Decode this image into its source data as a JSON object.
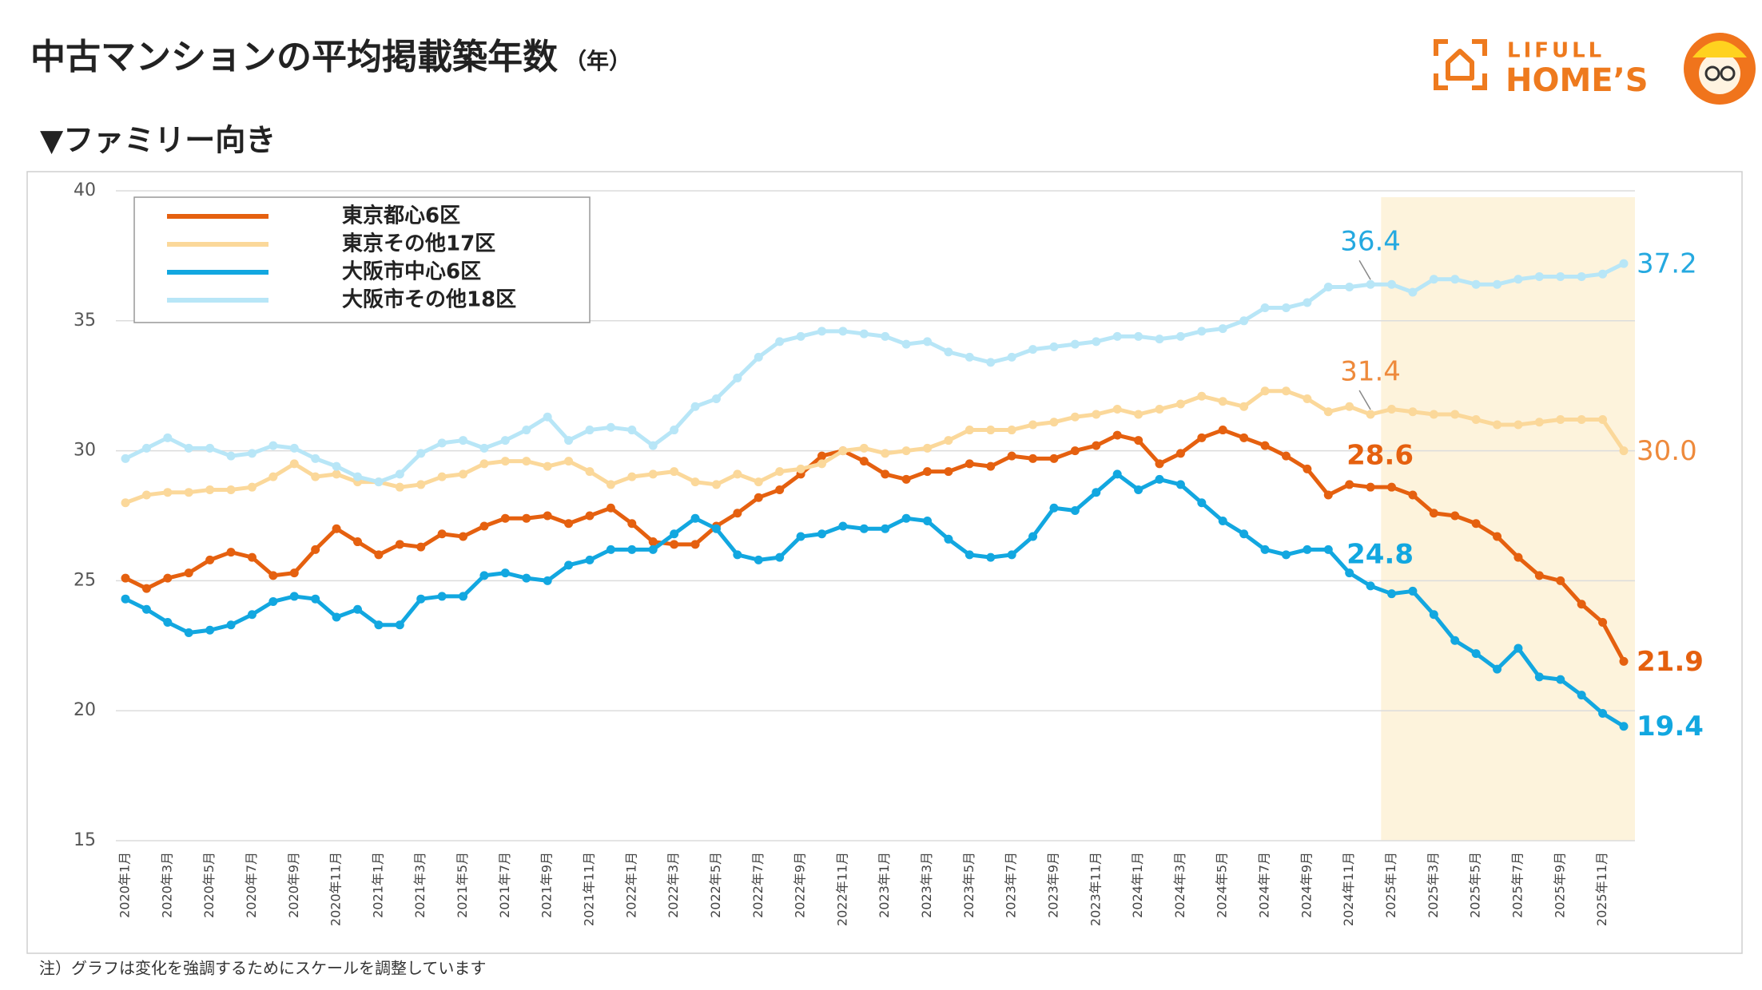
{
  "chart_data": {
    "type": "line",
    "title": "中古マンションの平均掲載築年数",
    "subtitle": "（年）",
    "section": "▼ファミリー向き",
    "note": "注）グラフは変化を強調するためにスケールを調整しています",
    "brand": [
      "LIFULL",
      "HOME’S"
    ],
    "categories": [
      "2020年1月",
      null,
      "2020年3月",
      null,
      "2020年5月",
      null,
      "2020年7月",
      null,
      "2020年9月",
      null,
      "2020年11月",
      null,
      "2021年1月",
      null,
      "2021年3月",
      null,
      "2021年5月",
      null,
      "2021年7月",
      null,
      "2021年9月",
      null,
      "2021年11月",
      null,
      "2022年1月",
      null,
      "2022年3月",
      null,
      "2022年5月",
      null,
      "2022年7月",
      null,
      "2022年9月",
      null,
      "2022年11月",
      null,
      "2023年1月",
      null,
      "2023年3月",
      null,
      "2023年5月",
      null,
      "2023年7月",
      null,
      "2023年9月",
      null,
      "2023年11月",
      null,
      "2024年1月",
      null,
      "2024年3月",
      null,
      "2024年5月",
      null,
      "2024年7月",
      null,
      "2024年9月",
      null,
      "2024年11月",
      null,
      "2025年1月",
      null,
      "2025年3月",
      null,
      "2025年5月",
      null,
      "2025年7月",
      null,
      "2025年9月",
      null,
      "2025年11月",
      null
    ],
    "highlight_from": "2025年1月",
    "series": [
      {
        "name": "東京都心6区",
        "color": "#e5600f",
        "label_color": "#e5600f",
        "label_bold": true,
        "values": [
          25.1,
          24.7,
          25.1,
          25.3,
          25.8,
          26.1,
          25.9,
          25.2,
          25.3,
          26.2,
          27.0,
          26.5,
          26.0,
          26.4,
          26.3,
          26.8,
          26.7,
          27.1,
          27.4,
          27.4,
          27.5,
          27.2,
          27.5,
          27.8,
          27.2,
          26.5,
          26.4,
          26.4,
          27.1,
          27.6,
          28.2,
          28.5,
          29.1,
          29.8,
          30.0,
          29.6,
          29.1,
          28.9,
          29.2,
          29.2,
          29.5,
          29.4,
          29.8,
          29.7,
          29.7,
          30.0,
          30.2,
          30.6,
          30.4,
          29.5,
          29.9,
          30.5,
          30.8,
          30.5,
          30.2,
          29.8,
          29.3,
          28.3,
          28.7,
          28.6,
          28.6,
          28.3,
          27.6,
          27.5,
          27.2,
          26.7,
          25.9,
          25.2,
          25.0,
          24.1,
          23.4,
          21.9
        ],
        "value_labels": [
          null,
          null,
          null,
          null,
          null,
          null,
          null,
          null,
          null,
          null,
          null,
          null,
          null,
          null,
          null,
          null,
          null,
          null,
          null,
          null,
          null,
          null,
          null,
          null,
          null,
          null,
          null,
          null,
          null,
          null,
          null,
          null,
          null,
          null,
          null,
          null,
          null,
          null,
          null,
          null,
          null,
          null,
          null,
          null,
          null,
          null,
          null,
          null,
          null,
          null,
          null,
          null,
          null,
          null,
          null,
          null,
          null,
          null,
          null,
          "28.6",
          null,
          null,
          null,
          null,
          null,
          null,
          null,
          null,
          null,
          null,
          null,
          "21.9"
        ]
      },
      {
        "name": "東京その他17区",
        "color": "#fbd89a",
        "label_color": "#ee8a3c",
        "label_bold": false,
        "values": [
          28.0,
          28.3,
          28.4,
          28.4,
          28.5,
          28.5,
          28.6,
          29.0,
          29.5,
          29.0,
          29.1,
          28.8,
          28.8,
          28.6,
          28.7,
          29.0,
          29.1,
          29.5,
          29.6,
          29.6,
          29.4,
          29.6,
          29.2,
          28.7,
          29.0,
          29.1,
          29.2,
          28.8,
          28.7,
          29.1,
          28.8,
          29.2,
          29.3,
          29.5,
          30.0,
          30.1,
          29.9,
          30.0,
          30.1,
          30.4,
          30.8,
          30.8,
          30.8,
          31.0,
          31.1,
          31.3,
          31.4,
          31.6,
          31.4,
          31.6,
          31.8,
          32.1,
          31.9,
          31.7,
          32.3,
          32.3,
          32.0,
          31.5,
          31.7,
          31.4,
          31.6,
          31.5,
          31.4,
          31.4,
          31.2,
          31.0,
          31.0,
          31.1,
          31.2,
          31.2,
          31.2,
          30.0
        ],
        "value_labels": [
          null,
          null,
          null,
          null,
          null,
          null,
          null,
          null,
          null,
          null,
          null,
          null,
          null,
          null,
          null,
          null,
          null,
          null,
          null,
          null,
          null,
          null,
          null,
          null,
          null,
          null,
          null,
          null,
          null,
          null,
          null,
          null,
          null,
          null,
          null,
          null,
          null,
          null,
          null,
          null,
          null,
          null,
          null,
          null,
          null,
          null,
          null,
          null,
          null,
          null,
          null,
          null,
          null,
          null,
          null,
          null,
          null,
          null,
          null,
          "31.4",
          null,
          null,
          null,
          null,
          null,
          null,
          null,
          null,
          null,
          null,
          null,
          "30.0"
        ]
      },
      {
        "name": "大阪市中心6区",
        "color": "#12a7e0",
        "label_color": "#12a7e0",
        "label_bold": true,
        "values": [
          24.3,
          23.9,
          23.4,
          23.0,
          23.1,
          23.3,
          23.7,
          24.2,
          24.4,
          24.3,
          23.6,
          23.9,
          23.3,
          23.3,
          24.3,
          24.4,
          24.4,
          25.2,
          25.3,
          25.1,
          25.0,
          25.6,
          25.8,
          26.2,
          26.2,
          26.2,
          26.8,
          27.4,
          27.0,
          26.0,
          25.8,
          25.9,
          26.7,
          26.8,
          27.1,
          27.0,
          27.0,
          27.4,
          27.3,
          26.6,
          26.0,
          25.9,
          26.0,
          26.7,
          27.8,
          27.7,
          28.4,
          29.1,
          28.5,
          28.9,
          28.7,
          28.0,
          27.3,
          26.8,
          26.2,
          26.0,
          26.2,
          26.2,
          25.3,
          24.8,
          24.5,
          24.6,
          23.7,
          22.7,
          22.2,
          21.6,
          22.4,
          21.3,
          21.2,
          20.6,
          19.9,
          19.4
        ],
        "value_labels": [
          null,
          null,
          null,
          null,
          null,
          null,
          null,
          null,
          null,
          null,
          null,
          null,
          null,
          null,
          null,
          null,
          null,
          null,
          null,
          null,
          null,
          null,
          null,
          null,
          null,
          null,
          null,
          null,
          null,
          null,
          null,
          null,
          null,
          null,
          null,
          null,
          null,
          null,
          null,
          null,
          null,
          null,
          null,
          null,
          null,
          null,
          null,
          null,
          null,
          null,
          null,
          null,
          null,
          null,
          null,
          null,
          null,
          null,
          null,
          "24.8",
          null,
          null,
          null,
          null,
          null,
          null,
          null,
          null,
          null,
          null,
          null,
          "19.4"
        ]
      },
      {
        "name": "大阪市その他18区",
        "color": "#b8e6f7",
        "label_color": "#25a9e0",
        "label_bold": false,
        "values": [
          29.7,
          30.1,
          30.5,
          30.1,
          30.1,
          29.8,
          29.9,
          30.2,
          30.1,
          29.7,
          29.4,
          29.0,
          28.8,
          29.1,
          29.9,
          30.3,
          30.4,
          30.1,
          30.4,
          30.8,
          31.3,
          30.4,
          30.8,
          30.9,
          30.8,
          30.2,
          30.8,
          31.7,
          32.0,
          32.8,
          33.6,
          34.2,
          34.4,
          34.6,
          34.6,
          34.5,
          34.4,
          34.1,
          34.2,
          33.8,
          33.6,
          33.4,
          33.6,
          33.9,
          34.0,
          34.1,
          34.2,
          34.4,
          34.4,
          34.3,
          34.4,
          34.6,
          34.7,
          35.0,
          35.5,
          35.5,
          35.7,
          36.3,
          36.3,
          36.4,
          36.4,
          36.1,
          36.6,
          36.6,
          36.4,
          36.4,
          36.6,
          36.7,
          36.7,
          36.7,
          36.8,
          37.2
        ],
        "value_labels": [
          null,
          null,
          null,
          null,
          null,
          null,
          null,
          null,
          null,
          null,
          null,
          null,
          null,
          null,
          null,
          null,
          null,
          null,
          null,
          null,
          null,
          null,
          null,
          null,
          null,
          null,
          null,
          null,
          null,
          null,
          null,
          null,
          null,
          null,
          null,
          null,
          null,
          null,
          null,
          null,
          null,
          null,
          null,
          null,
          null,
          null,
          null,
          null,
          null,
          null,
          null,
          null,
          null,
          null,
          null,
          null,
          null,
          null,
          null,
          "36.4",
          null,
          null,
          null,
          null,
          null,
          null,
          null,
          null,
          null,
          null,
          null,
          "37.2"
        ]
      }
    ],
    "ylim": [
      15,
      40
    ],
    "yticks": [
      15,
      20,
      25,
      30,
      35,
      40
    ],
    "grid": true,
    "legend": "upper left"
  }
}
